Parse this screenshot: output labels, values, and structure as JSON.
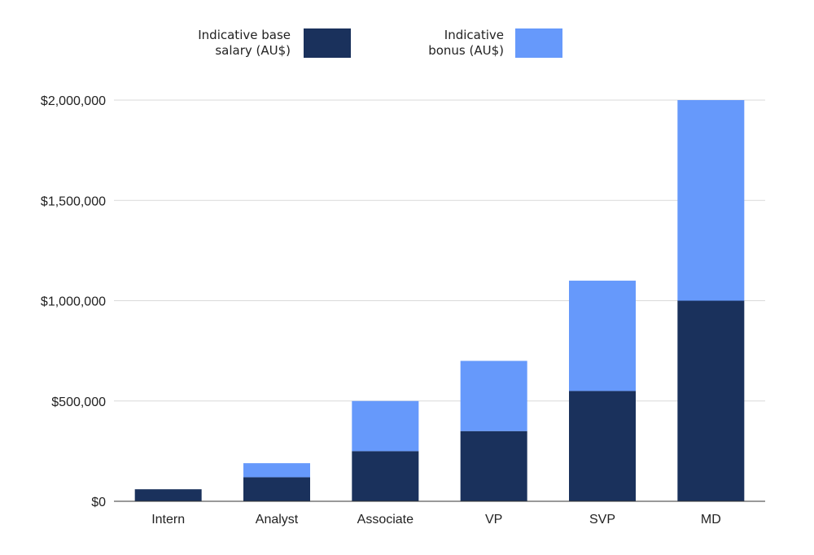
{
  "chart_data": {
    "type": "bar",
    "stacked": true,
    "categories": [
      "Intern",
      "Analyst",
      "Associate",
      "VP",
      "SVP",
      "MD"
    ],
    "series": [
      {
        "name": [
          "Indicative base",
          "salary (AU$)"
        ],
        "color": "#1a315c",
        "values": [
          60000,
          120000,
          250000,
          350000,
          550000,
          1000000
        ]
      },
      {
        "name": [
          "Indicative",
          "bonus (AU$)"
        ],
        "color": "#6699fb",
        "values": [
          0,
          70000,
          250000,
          350000,
          550000,
          1000000
        ]
      }
    ],
    "title": "",
    "xlabel": "",
    "ylabel": "",
    "ylim": [
      0,
      2000000
    ],
    "yticks": [
      0,
      500000,
      1000000,
      1500000,
      2000000
    ],
    "ytick_labels": [
      "$0",
      "$500,000",
      "$1,000,000",
      "$1,500,000",
      "$2,000,000"
    ],
    "grid": true,
    "legend_position": "top"
  }
}
